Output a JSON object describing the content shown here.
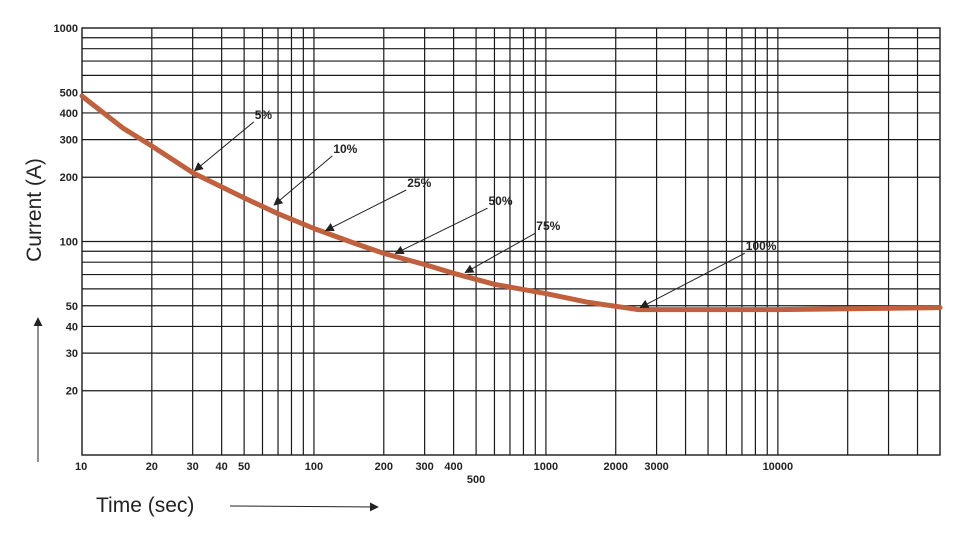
{
  "chart_data": {
    "type": "line",
    "title": "",
    "xlabel": "Time (sec)",
    "ylabel": "Current (A)",
    "x_scale": "log",
    "y_scale": "log",
    "xlim": [
      10,
      50000
    ],
    "ylim": [
      10,
      1000
    ],
    "grid": true,
    "x_tick_labels": [
      {
        "v": 10,
        "t": "10"
      },
      {
        "v": 20,
        "t": "20"
      },
      {
        "v": 30,
        "t": "30"
      },
      {
        "v": 40,
        "t": "40"
      },
      {
        "v": 50,
        "t": "50"
      },
      {
        "v": 100,
        "t": "100"
      },
      {
        "v": 200,
        "t": "200"
      },
      {
        "v": 300,
        "t": "300"
      },
      {
        "v": 400,
        "t": "400"
      },
      {
        "v": 500,
        "t": "500"
      },
      {
        "v": 1000,
        "t": "1000"
      },
      {
        "v": 2000,
        "t": "2000"
      },
      {
        "v": 3000,
        "t": "3000"
      },
      {
        "v": 10000,
        "t": "10000"
      }
    ],
    "y_tick_labels": [
      {
        "v": 1000,
        "t": "1000"
      },
      {
        "v": 500,
        "t": "500"
      },
      {
        "v": 400,
        "t": "400"
      },
      {
        "v": 300,
        "t": "300"
      },
      {
        "v": 200,
        "t": "200"
      },
      {
        "v": 100,
        "t": "100"
      },
      {
        "v": 50,
        "t": "50"
      },
      {
        "v": 40,
        "t": "40"
      },
      {
        "v": 30,
        "t": "30"
      },
      {
        "v": 20,
        "t": "20"
      }
    ],
    "series": [
      {
        "color": "#c0603c",
        "points": [
          {
            "x": 10,
            "y": 480
          },
          {
            "x": 15,
            "y": 340
          },
          {
            "x": 20,
            "y": 280
          },
          {
            "x": 30,
            "y": 210
          },
          {
            "x": 50,
            "y": 160
          },
          {
            "x": 70,
            "y": 135
          },
          {
            "x": 100,
            "y": 115
          },
          {
            "x": 150,
            "y": 98
          },
          {
            "x": 200,
            "y": 88
          },
          {
            "x": 300,
            "y": 78
          },
          {
            "x": 400,
            "y": 71
          },
          {
            "x": 600,
            "y": 63
          },
          {
            "x": 1000,
            "y": 57
          },
          {
            "x": 1500,
            "y": 52
          },
          {
            "x": 2500,
            "y": 48
          },
          {
            "x": 5000,
            "y": 48
          },
          {
            "x": 10000,
            "y": 48
          },
          {
            "x": 50000,
            "y": 49
          }
        ]
      }
    ],
    "annotations": [
      {
        "text": "5%",
        "x": 30,
        "y": 210,
        "label_x": 55,
        "label_y": 375
      },
      {
        "text": "10%",
        "x": 66,
        "y": 145,
        "label_x": 120,
        "label_y": 260
      },
      {
        "text": "25%",
        "x": 110,
        "y": 110,
        "label_x": 250,
        "label_y": 180
      },
      {
        "text": "50%",
        "x": 220,
        "y": 86,
        "label_x": 560,
        "label_y": 148
      },
      {
        "text": "75%",
        "x": 440,
        "y": 70,
        "label_x": 900,
        "label_y": 113
      },
      {
        "text": "100%",
        "x": 2500,
        "y": 48,
        "label_x": 7200,
        "label_y": 91
      }
    ]
  }
}
